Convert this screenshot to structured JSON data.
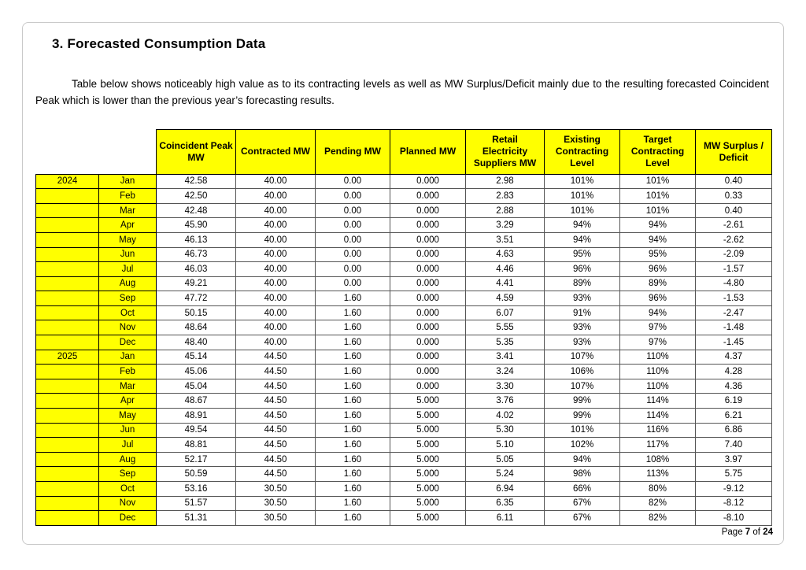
{
  "document": {
    "title": "3. Forecasted Consumption Data",
    "paragraph": "Table below shows noticeably high value as to its contracting levels as well as MW Surplus/Deficit mainly due to the resulting forecasted Coincident Peak which is lower than the previous year’s forecasting results.",
    "footer": {
      "prefix": "Page",
      "page_number": "7",
      "separator": "of",
      "total_pages": "24"
    }
  },
  "colors": {
    "highlight_yellow": "#FFFF00",
    "grid_black": "#000000"
  },
  "table": {
    "headers": [
      "Coincident Peak MW",
      "Contracted MW",
      "Pending MW",
      "Planned MW",
      "Retail Electricity Suppliers MW",
      "Existing Contracting Level",
      "Target Contracting Level",
      "MW Surplus / Deficit"
    ],
    "rows": [
      {
        "year": "2024",
        "month": "Jan",
        "values": [
          "42.58",
          "40.00",
          "0.00",
          "0.000",
          "2.98",
          "101%",
          "101%",
          "0.40"
        ]
      },
      {
        "year": "",
        "month": "Feb",
        "values": [
          "42.50",
          "40.00",
          "0.00",
          "0.000",
          "2.83",
          "101%",
          "101%",
          "0.33"
        ]
      },
      {
        "year": "",
        "month": "Mar",
        "values": [
          "42.48",
          "40.00",
          "0.00",
          "0.000",
          "2.88",
          "101%",
          "101%",
          "0.40"
        ]
      },
      {
        "year": "",
        "month": "Apr",
        "values": [
          "45.90",
          "40.00",
          "0.00",
          "0.000",
          "3.29",
          "94%",
          "94%",
          "-2.61"
        ]
      },
      {
        "year": "",
        "month": "May",
        "values": [
          "46.13",
          "40.00",
          "0.00",
          "0.000",
          "3.51",
          "94%",
          "94%",
          "-2.62"
        ]
      },
      {
        "year": "",
        "month": "Jun",
        "values": [
          "46.73",
          "40.00",
          "0.00",
          "0.000",
          "4.63",
          "95%",
          "95%",
          "-2.09"
        ]
      },
      {
        "year": "",
        "month": "Jul",
        "values": [
          "46.03",
          "40.00",
          "0.00",
          "0.000",
          "4.46",
          "96%",
          "96%",
          "-1.57"
        ]
      },
      {
        "year": "",
        "month": "Aug",
        "values": [
          "49.21",
          "40.00",
          "0.00",
          "0.000",
          "4.41",
          "89%",
          "89%",
          "-4.80"
        ]
      },
      {
        "year": "",
        "month": "Sep",
        "values": [
          "47.72",
          "40.00",
          "1.60",
          "0.000",
          "4.59",
          "93%",
          "96%",
          "-1.53"
        ]
      },
      {
        "year": "",
        "month": "Oct",
        "values": [
          "50.15",
          "40.00",
          "1.60",
          "0.000",
          "6.07",
          "91%",
          "94%",
          "-2.47"
        ]
      },
      {
        "year": "",
        "month": "Nov",
        "values": [
          "48.64",
          "40.00",
          "1.60",
          "0.000",
          "5.55",
          "93%",
          "97%",
          "-1.48"
        ]
      },
      {
        "year": "",
        "month": "Dec",
        "values": [
          "48.40",
          "40.00",
          "1.60",
          "0.000",
          "5.35",
          "93%",
          "97%",
          "-1.45"
        ]
      },
      {
        "year": "2025",
        "month": "Jan",
        "values": [
          "45.14",
          "44.50",
          "1.60",
          "0.000",
          "3.41",
          "107%",
          "110%",
          "4.37"
        ]
      },
      {
        "year": "",
        "month": "Feb",
        "values": [
          "45.06",
          "44.50",
          "1.60",
          "0.000",
          "3.24",
          "106%",
          "110%",
          "4.28"
        ]
      },
      {
        "year": "",
        "month": "Mar",
        "values": [
          "45.04",
          "44.50",
          "1.60",
          "0.000",
          "3.30",
          "107%",
          "110%",
          "4.36"
        ]
      },
      {
        "year": "",
        "month": "Apr",
        "values": [
          "48.67",
          "44.50",
          "1.60",
          "5.000",
          "3.76",
          "99%",
          "114%",
          "6.19"
        ]
      },
      {
        "year": "",
        "month": "May",
        "values": [
          "48.91",
          "44.50",
          "1.60",
          "5.000",
          "4.02",
          "99%",
          "114%",
          "6.21"
        ]
      },
      {
        "year": "",
        "month": "Jun",
        "values": [
          "49.54",
          "44.50",
          "1.60",
          "5.000",
          "5.30",
          "101%",
          "116%",
          "6.86"
        ]
      },
      {
        "year": "",
        "month": "Jul",
        "values": [
          "48.81",
          "44.50",
          "1.60",
          "5.000",
          "5.10",
          "102%",
          "117%",
          "7.40"
        ]
      },
      {
        "year": "",
        "month": "Aug",
        "values": [
          "52.17",
          "44.50",
          "1.60",
          "5.000",
          "5.05",
          "94%",
          "108%",
          "3.97"
        ]
      },
      {
        "year": "",
        "month": "Sep",
        "values": [
          "50.59",
          "44.50",
          "1.60",
          "5.000",
          "5.24",
          "98%",
          "113%",
          "5.75"
        ]
      },
      {
        "year": "",
        "month": "Oct",
        "values": [
          "53.16",
          "30.50",
          "1.60",
          "5.000",
          "6.94",
          "66%",
          "80%",
          "-9.12"
        ]
      },
      {
        "year": "",
        "month": "Nov",
        "values": [
          "51.57",
          "30.50",
          "1.60",
          "5.000",
          "6.35",
          "67%",
          "82%",
          "-8.12"
        ]
      },
      {
        "year": "",
        "month": "Dec",
        "values": [
          "51.31",
          "30.50",
          "1.60",
          "5.000",
          "6.11",
          "67%",
          "82%",
          "-8.10"
        ]
      }
    ]
  }
}
